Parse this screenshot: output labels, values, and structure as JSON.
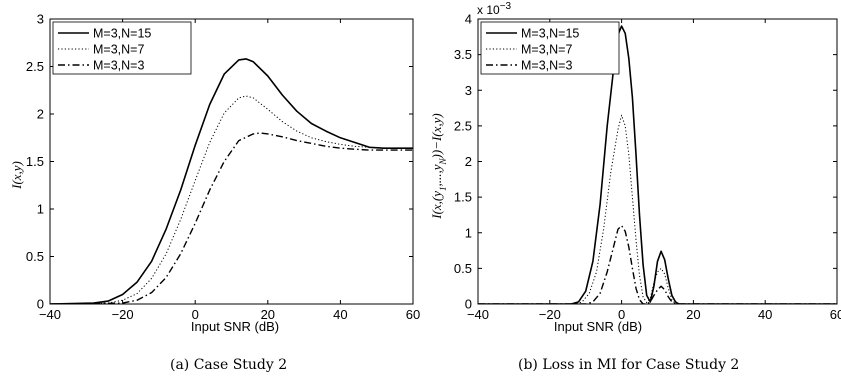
{
  "chart_data": [
    {
      "type": "line",
      "caption": "(a)  Case Study 2",
      "xlabel": "Input SNR (dB)",
      "ylabel": "I(x,y)",
      "xlim": [
        -40,
        60
      ],
      "ylim": [
        0,
        3
      ],
      "xticks": [
        "−40",
        "−20",
        "0",
        "20",
        "40",
        "60"
      ],
      "yticks": [
        "0",
        "0.5",
        "1",
        "1.5",
        "2",
        "2.5",
        "3"
      ],
      "legend_position": "top-left",
      "series": [
        {
          "name": "M=3,N=15",
          "style": "solid",
          "points": [
            [
              -40,
              0
            ],
            [
              -28,
              0.01
            ],
            [
              -24,
              0.03
            ],
            [
              -20,
              0.1
            ],
            [
              -16,
              0.23
            ],
            [
              -12,
              0.45
            ],
            [
              -8,
              0.79
            ],
            [
              -4,
              1.2
            ],
            [
              0,
              1.67
            ],
            [
              4,
              2.1
            ],
            [
              8,
              2.42
            ],
            [
              12,
              2.57
            ],
            [
              14,
              2.58
            ],
            [
              16,
              2.55
            ],
            [
              20,
              2.4
            ],
            [
              24,
              2.2
            ],
            [
              28,
              2.03
            ],
            [
              32,
              1.9
            ],
            [
              36,
              1.82
            ],
            [
              40,
              1.75
            ],
            [
              44,
              1.7
            ],
            [
              48,
              1.65
            ],
            [
              52,
              1.64
            ],
            [
              56,
              1.64
            ],
            [
              60,
              1.64
            ]
          ]
        },
        {
          "name": "M=3,N=7",
          "style": "dotted",
          "points": [
            [
              -40,
              0
            ],
            [
              -24,
              0.01
            ],
            [
              -20,
              0.04
            ],
            [
              -16,
              0.11
            ],
            [
              -12,
              0.27
            ],
            [
              -8,
              0.53
            ],
            [
              -4,
              0.89
            ],
            [
              0,
              1.3
            ],
            [
              4,
              1.7
            ],
            [
              8,
              2.01
            ],
            [
              12,
              2.17
            ],
            [
              14,
              2.19
            ],
            [
              16,
              2.17
            ],
            [
              20,
              2.05
            ],
            [
              24,
              1.92
            ],
            [
              28,
              1.82
            ],
            [
              32,
              1.75
            ],
            [
              36,
              1.71
            ],
            [
              40,
              1.68
            ],
            [
              44,
              1.66
            ],
            [
              48,
              1.65
            ],
            [
              52,
              1.64
            ],
            [
              56,
              1.64
            ],
            [
              60,
              1.64
            ]
          ]
        },
        {
          "name": "M=3,N=3",
          "style": "dashdot",
          "points": [
            [
              -40,
              0
            ],
            [
              -20,
              0.01
            ],
            [
              -16,
              0.04
            ],
            [
              -12,
              0.12
            ],
            [
              -8,
              0.28
            ],
            [
              -4,
              0.53
            ],
            [
              0,
              0.85
            ],
            [
              4,
              1.2
            ],
            [
              8,
              1.5
            ],
            [
              12,
              1.72
            ],
            [
              16,
              1.79
            ],
            [
              18,
              1.8
            ],
            [
              20,
              1.79
            ],
            [
              24,
              1.76
            ],
            [
              28,
              1.72
            ],
            [
              32,
              1.69
            ],
            [
              36,
              1.66
            ],
            [
              40,
              1.64
            ],
            [
              44,
              1.63
            ],
            [
              48,
              1.62
            ],
            [
              52,
              1.62
            ],
            [
              56,
              1.62
            ],
            [
              60,
              1.62
            ]
          ]
        }
      ]
    },
    {
      "type": "line",
      "caption": "(b)  Loss in MI for Case Study 2",
      "xlabel": "Input SNR (dB)",
      "ylabel": "I(x,(y1,...,yN))−I(x,y)",
      "ylabel_parts": [
        "I(x,(y",
        "1",
        ",...,y",
        "N",
        "))−I(x,y)"
      ],
      "scale_exponent": "x 10",
      "scale_power": "−3",
      "xlim": [
        -40,
        60
      ],
      "ylim": [
        0,
        4
      ],
      "xticks": [
        "−40",
        "−20",
        "0",
        "20",
        "40",
        "60"
      ],
      "yticks": [
        "0",
        "0.5",
        "1",
        "1.5",
        "2",
        "2.5",
        "3",
        "3.5",
        "4"
      ],
      "legend_position": "top-left",
      "series": [
        {
          "name": "M=3,N=15",
          "style": "solid",
          "points": [
            [
              -40,
              0
            ],
            [
              -14,
              0
            ],
            [
              -12,
              0.03
            ],
            [
              -10,
              0.18
            ],
            [
              -8,
              0.6
            ],
            [
              -6,
              1.4
            ],
            [
              -4,
              2.5
            ],
            [
              -2,
              3.4
            ],
            [
              -1,
              3.78
            ],
            [
              0,
              3.9
            ],
            [
              1,
              3.8
            ],
            [
              2,
              3.45
            ],
            [
              3,
              2.9
            ],
            [
              4,
              2.1
            ],
            [
              5,
              1.25
            ],
            [
              6,
              0.55
            ],
            [
              7,
              0.12
            ],
            [
              8,
              0.03
            ],
            [
              9,
              0.25
            ],
            [
              10,
              0.6
            ],
            [
              11,
              0.74
            ],
            [
              12,
              0.62
            ],
            [
              13,
              0.35
            ],
            [
              14,
              0.12
            ],
            [
              15,
              0.03
            ],
            [
              16,
              0
            ],
            [
              60,
              0
            ]
          ]
        },
        {
          "name": "M=3,N=7",
          "style": "dotted",
          "points": [
            [
              -40,
              0
            ],
            [
              -13,
              0
            ],
            [
              -11,
              0.03
            ],
            [
              -9,
              0.15
            ],
            [
              -7,
              0.45
            ],
            [
              -5,
              1.05
            ],
            [
              -3,
              1.85
            ],
            [
              -1,
              2.45
            ],
            [
              0,
              2.65
            ],
            [
              1,
              2.5
            ],
            [
              2,
              2.1
            ],
            [
              3,
              1.5
            ],
            [
              4,
              0.9
            ],
            [
              5,
              0.4
            ],
            [
              6,
              0.1
            ],
            [
              7,
              0.02
            ],
            [
              8,
              0.08
            ],
            [
              9,
              0.3
            ],
            [
              10,
              0.45
            ],
            [
              11,
              0.5
            ],
            [
              12,
              0.42
            ],
            [
              13,
              0.22
            ],
            [
              14,
              0.06
            ],
            [
              15,
              0
            ],
            [
              60,
              0
            ]
          ]
        },
        {
          "name": "M=3,N=3",
          "style": "dashdot",
          "points": [
            [
              -40,
              0
            ],
            [
              -10,
              0
            ],
            [
              -8,
              0.03
            ],
            [
              -6,
              0.15
            ],
            [
              -4,
              0.45
            ],
            [
              -2,
              0.85
            ],
            [
              -1,
              1.05
            ],
            [
              0,
              1.1
            ],
            [
              1,
              1.02
            ],
            [
              2,
              0.8
            ],
            [
              3,
              0.5
            ],
            [
              4,
              0.22
            ],
            [
              5,
              0.06
            ],
            [
              6,
              0
            ],
            [
              7,
              0
            ],
            [
              8,
              0.03
            ],
            [
              9,
              0.12
            ],
            [
              10,
              0.2
            ],
            [
              11,
              0.25
            ],
            [
              12,
              0.2
            ],
            [
              13,
              0.1
            ],
            [
              14,
              0.03
            ],
            [
              15,
              0
            ],
            [
              60,
              0
            ]
          ]
        }
      ]
    }
  ]
}
